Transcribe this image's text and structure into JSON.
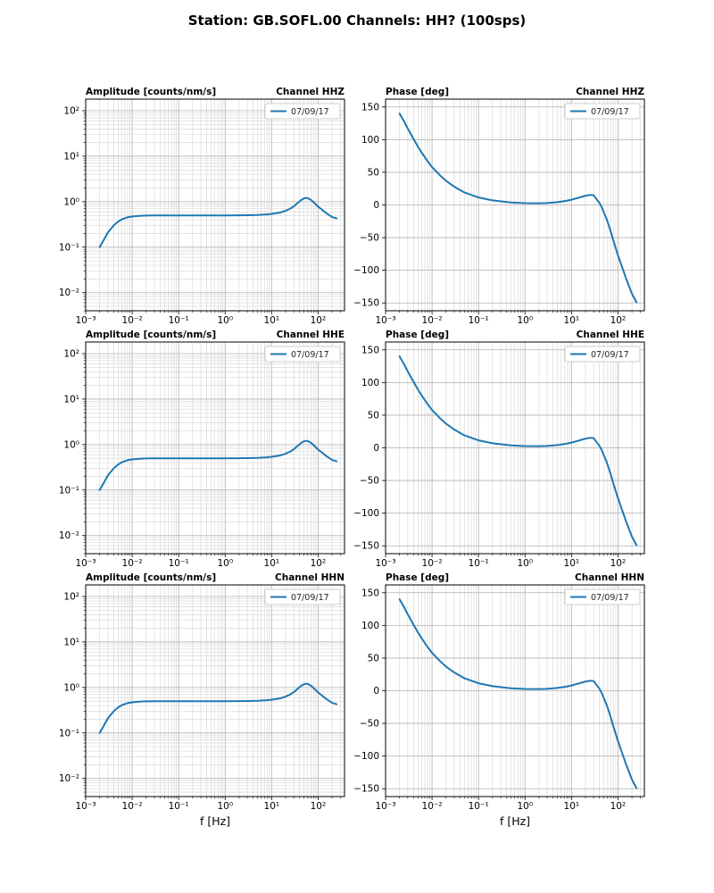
{
  "figure": {
    "title": "Station: GB.SOFL.00 Channels: HH? (100sps)",
    "xlabel": "f [Hz]",
    "line_color": "#1f77b4",
    "grid_major_color": "#b0b0b0",
    "grid_minor_color": "#d4d4d4"
  },
  "series_data": {
    "freq": [
      0.002,
      0.0025,
      0.003,
      0.004,
      0.005,
      0.006,
      0.008,
      0.01,
      0.015,
      0.02,
      0.03,
      0.05,
      0.08,
      0.1,
      0.2,
      0.5,
      1,
      2,
      3,
      5,
      8,
      10,
      15,
      20,
      25,
      30,
      40,
      45,
      50,
      55,
      60,
      70,
      80,
      100,
      150,
      200,
      250
    ],
    "amplitude": [
      0.1,
      0.15,
      0.21,
      0.3,
      0.365,
      0.41,
      0.455,
      0.472,
      0.49,
      0.495,
      0.498,
      0.5,
      0.5,
      0.5,
      0.5,
      0.5,
      0.5,
      0.502,
      0.505,
      0.51,
      0.525,
      0.54,
      0.575,
      0.63,
      0.7,
      0.79,
      1.02,
      1.12,
      1.18,
      1.21,
      1.2,
      1.1,
      0.97,
      0.78,
      0.56,
      0.46,
      0.43
    ],
    "phase": [
      140,
      128,
      117,
      101,
      89,
      80,
      67,
      58,
      45,
      37,
      28,
      19,
      14,
      11.5,
      7,
      3.8,
      2.8,
      2.6,
      2.9,
      4.3,
      6.5,
      8,
      11.5,
      14,
      15.3,
      14.8,
      3,
      -4,
      -12,
      -19,
      -26,
      -41,
      -55,
      -77,
      -113,
      -136,
      -149
    ]
  },
  "chart_data": [
    {
      "id": "hhz-amplitude",
      "type": "line",
      "title": "Amplitude [counts/nm/s]",
      "channel_title": "Channel HHZ",
      "legend": "07/09/17",
      "xscale": "log",
      "yscale": "log",
      "xlim": [
        0.001,
        370
      ],
      "ylim": [
        0.004,
        180
      ],
      "xticks": [
        -3,
        -2,
        -1,
        0,
        1,
        2
      ],
      "yticks": [
        -2,
        -1,
        0,
        1,
        2
      ],
      "x_ref": "freq",
      "y_ref": "amplitude"
    },
    {
      "id": "hhz-phase",
      "type": "line",
      "title": "Phase [deg]",
      "channel_title": "Channel HHZ",
      "legend": "07/09/17",
      "xscale": "log",
      "yscale": "linear",
      "xlim": [
        0.001,
        370
      ],
      "ylim": [
        -162,
        162
      ],
      "xticks": [
        -3,
        -2,
        -1,
        0,
        1,
        2
      ],
      "yticks": [
        -150,
        -100,
        -50,
        0,
        50,
        100,
        150
      ],
      "x_ref": "freq",
      "y_ref": "phase"
    },
    {
      "id": "hhe-amplitude",
      "type": "line",
      "title": "Amplitude [counts/nm/s]",
      "channel_title": "Channel HHE",
      "legend": "07/09/17",
      "xscale": "log",
      "yscale": "log",
      "xlim": [
        0.001,
        370
      ],
      "ylim": [
        0.004,
        180
      ],
      "xticks": [
        -3,
        -2,
        -1,
        0,
        1,
        2
      ],
      "yticks": [
        -2,
        -1,
        0,
        1,
        2
      ],
      "x_ref": "freq",
      "y_ref": "amplitude"
    },
    {
      "id": "hhe-phase",
      "type": "line",
      "title": "Phase [deg]",
      "channel_title": "Channel HHE",
      "legend": "07/09/17",
      "xscale": "log",
      "yscale": "linear",
      "xlim": [
        0.001,
        370
      ],
      "ylim": [
        -162,
        162
      ],
      "xticks": [
        -3,
        -2,
        -1,
        0,
        1,
        2
      ],
      "yticks": [
        -150,
        -100,
        -50,
        0,
        50,
        100,
        150
      ],
      "x_ref": "freq",
      "y_ref": "phase"
    },
    {
      "id": "hhn-amplitude",
      "type": "line",
      "title": "Amplitude [counts/nm/s]",
      "channel_title": "Channel HHN",
      "legend": "07/09/17",
      "xscale": "log",
      "yscale": "log",
      "xlim": [
        0.001,
        370
      ],
      "ylim": [
        0.004,
        180
      ],
      "xticks": [
        -3,
        -2,
        -1,
        0,
        1,
        2
      ],
      "yticks": [
        -2,
        -1,
        0,
        1,
        2
      ],
      "x_ref": "freq",
      "y_ref": "amplitude"
    },
    {
      "id": "hhn-phase",
      "type": "line",
      "title": "Phase [deg]",
      "channel_title": "Channel HHN",
      "legend": "07/09/17",
      "xscale": "log",
      "yscale": "linear",
      "xlim": [
        0.001,
        370
      ],
      "ylim": [
        -162,
        162
      ],
      "xticks": [
        -3,
        -2,
        -1,
        0,
        1,
        2
      ],
      "yticks": [
        -150,
        -100,
        -50,
        0,
        50,
        100,
        150
      ],
      "x_ref": "freq",
      "y_ref": "phase"
    }
  ]
}
